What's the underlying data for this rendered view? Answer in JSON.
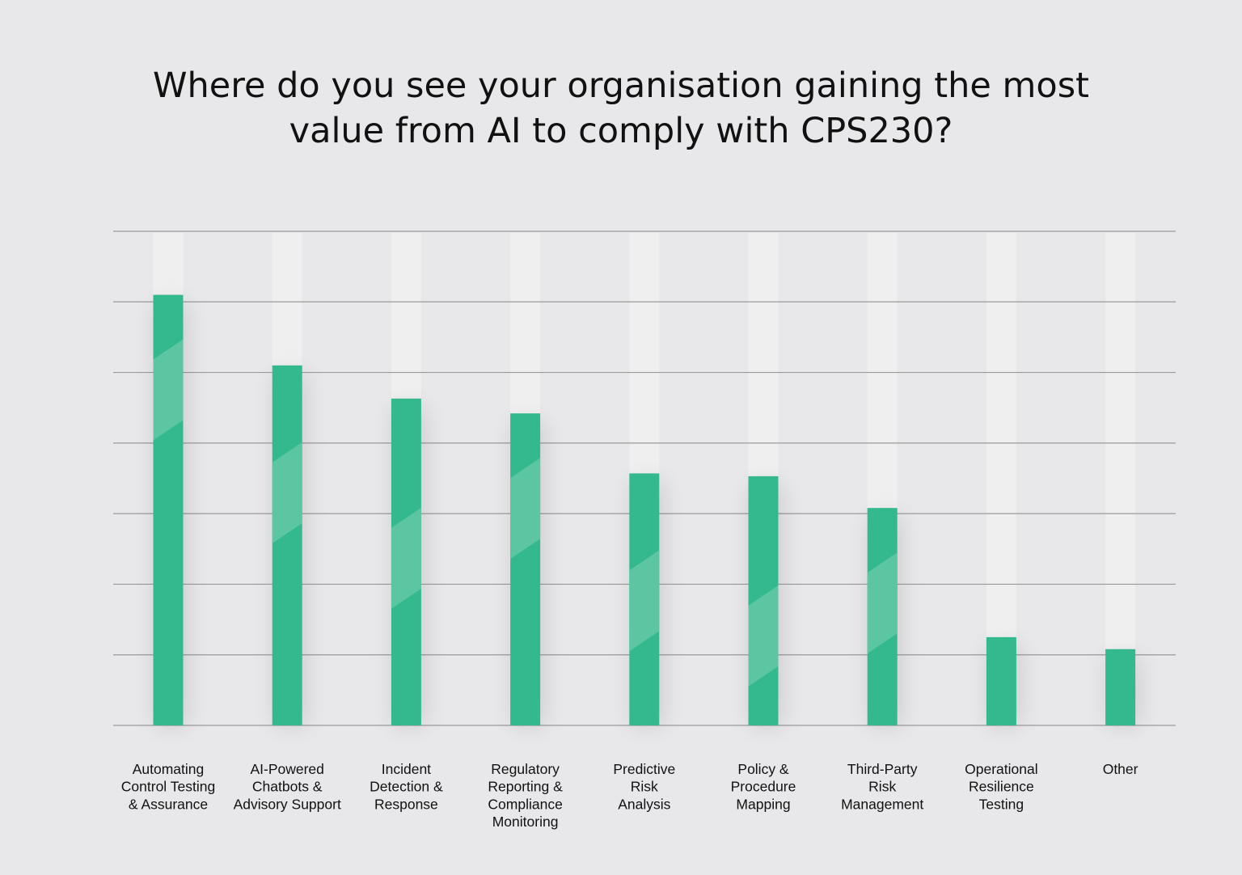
{
  "chart_data": {
    "type": "bar",
    "title_lines": [
      "Where do you see your organisation gaining the most",
      "value from AI to comply with CPS230?"
    ],
    "categories": [
      [
        "Automating",
        "Control Testing",
        "& Assurance"
      ],
      [
        "AI-Powered",
        "Chatbots &",
        "Advisory Support"
      ],
      [
        "Incident",
        "Detection &",
        "Response"
      ],
      [
        "Regulatory",
        "Reporting &",
        "Compliance",
        "Monitoring"
      ],
      [
        "Predictive",
        "Risk",
        "Analysis"
      ],
      [
        "Policy &",
        "Procedure",
        "Mapping"
      ],
      [
        "Third-Party",
        "Risk",
        "Management"
      ],
      [
        "Operational",
        "Resilience",
        "Testing"
      ],
      [
        "Other"
      ]
    ],
    "values": [
      6.1,
      5.1,
      4.63,
      4.42,
      3.57,
      3.53,
      3.08,
      1.25,
      1.08
    ],
    "ylim": [
      0,
      7
    ],
    "grid": true,
    "xlabel": "",
    "ylabel": "",
    "colors": {
      "bar": "#34b98e",
      "stripe": "#5cc6a2",
      "track": "#efefef",
      "grid": "#9a9a9a",
      "background": "#e8e8ea"
    }
  }
}
